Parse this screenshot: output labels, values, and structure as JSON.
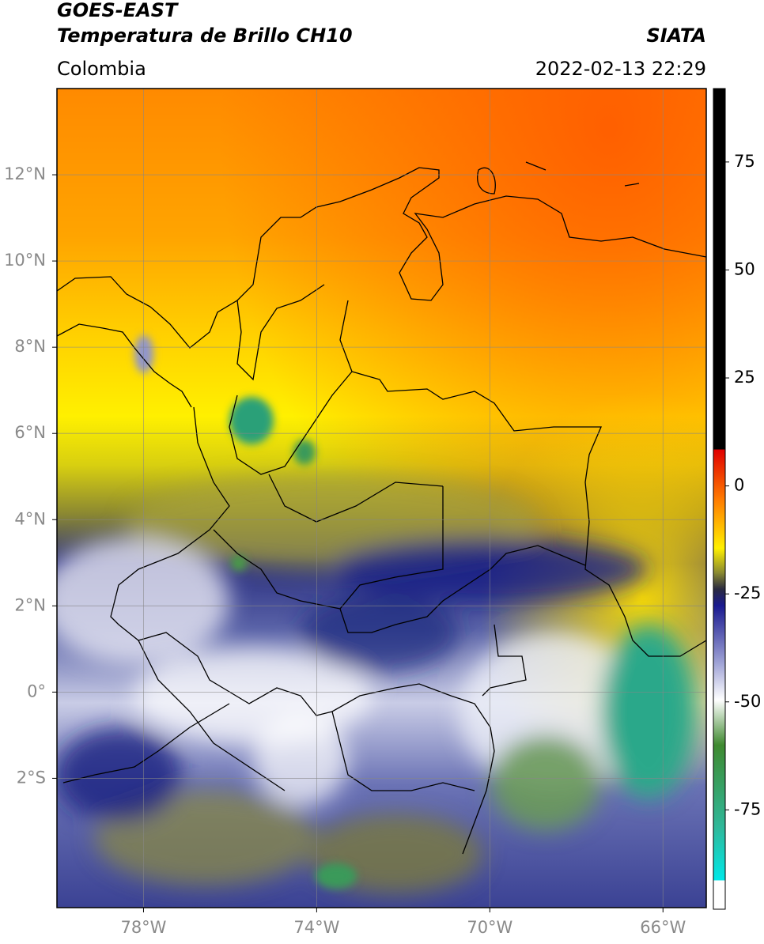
{
  "header": {
    "satellite": "GOES-EAST",
    "product": "Temperatura de Brillo CH10",
    "agency": "SIATA",
    "region": "Colombia",
    "datetime": "2022-02-13 22:29"
  },
  "map": {
    "lonlim": [
      -80,
      -65
    ],
    "latlim": [
      -5,
      14
    ],
    "lonticks": [
      {
        "value": -78,
        "label": "78°W"
      },
      {
        "value": -74,
        "label": "74°W"
      },
      {
        "value": -70,
        "label": "70°W"
      },
      {
        "value": -66,
        "label": "66°W"
      }
    ],
    "latticks": [
      {
        "value": 12,
        "label": "12°N"
      },
      {
        "value": 10,
        "label": "10°N"
      },
      {
        "value": 8,
        "label": "8°N"
      },
      {
        "value": 6,
        "label": "6°N"
      },
      {
        "value": 4,
        "label": "4°N"
      },
      {
        "value": 2,
        "label": "2°N"
      },
      {
        "value": 0,
        "label": "0°"
      },
      {
        "value": -2,
        "label": "2°S"
      }
    ],
    "grid": true
  },
  "colorbar": {
    "clim": [
      -98,
      92
    ],
    "ticks": [
      75,
      50,
      25,
      0,
      -25,
      -50,
      -75
    ]
  }
}
